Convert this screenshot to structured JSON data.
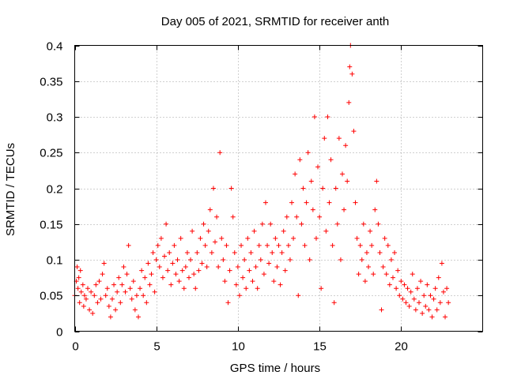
{
  "chart_data": {
    "type": "scatter",
    "title": "Day 005 of 2021, SRMTID for receiver anth",
    "xlabel": "GPS time / hours",
    "ylabel": "SRMTID / TECUs",
    "xlim": [
      0,
      25
    ],
    "ylim": [
      0,
      0.4
    ],
    "xticks": [
      0,
      5,
      10,
      15,
      20
    ],
    "xtick_labels": [
      "0",
      "5",
      "10",
      "15",
      "20"
    ],
    "yticks": [
      0,
      0.05,
      0.1,
      0.15,
      0.2,
      0.25,
      0.3,
      0.35,
      0.4
    ],
    "ytick_labels": [
      "0",
      "0.05",
      "0.1",
      "0.15",
      "0.2",
      "0.25",
      "0.3",
      "0.35",
      "0.4"
    ],
    "grid": true,
    "marker": "plus",
    "color": "#ff0000",
    "series": [
      {
        "name": "SRMTID",
        "points": [
          [
            0.0,
            0.05
          ],
          [
            0.1,
            0.07
          ],
          [
            0.15,
            0.09
          ],
          [
            0.2,
            0.06
          ],
          [
            0.25,
            0.075
          ],
          [
            0.3,
            0.04
          ],
          [
            0.35,
            0.085
          ],
          [
            0.4,
            0.055
          ],
          [
            0.5,
            0.065
          ],
          [
            0.55,
            0.035
          ],
          [
            0.6,
            0.05
          ],
          [
            0.7,
            0.045
          ],
          [
            0.8,
            0.06
          ],
          [
            0.9,
            0.03
          ],
          [
            1.0,
            0.055
          ],
          [
            1.1,
            0.025
          ],
          [
            1.2,
            0.05
          ],
          [
            1.3,
            0.065
          ],
          [
            1.4,
            0.04
          ],
          [
            1.5,
            0.07
          ],
          [
            1.6,
            0.045
          ],
          [
            1.7,
            0.08
          ],
          [
            1.8,
            0.095
          ],
          [
            1.9,
            0.05
          ],
          [
            2.0,
            0.06
          ],
          [
            2.1,
            0.035
          ],
          [
            2.2,
            0.02
          ],
          [
            2.3,
            0.045
          ],
          [
            2.4,
            0.065
          ],
          [
            2.5,
            0.03
          ],
          [
            2.6,
            0.055
          ],
          [
            2.7,
            0.075
          ],
          [
            2.8,
            0.04
          ],
          [
            2.9,
            0.065
          ],
          [
            3.0,
            0.09
          ],
          [
            3.1,
            0.055
          ],
          [
            3.2,
            0.08
          ],
          [
            3.3,
            0.12
          ],
          [
            3.4,
            0.06
          ],
          [
            3.5,
            0.045
          ],
          [
            3.6,
            0.07
          ],
          [
            3.7,
            0.03
          ],
          [
            3.8,
            0.05
          ],
          [
            3.9,
            0.02
          ],
          [
            4.0,
            0.06
          ],
          [
            4.1,
            0.085
          ],
          [
            4.2,
            0.05
          ],
          [
            4.3,
            0.075
          ],
          [
            4.4,
            0.04
          ],
          [
            4.5,
            0.095
          ],
          [
            4.6,
            0.065
          ],
          [
            4.7,
            0.08
          ],
          [
            4.8,
            0.11
          ],
          [
            4.9,
            0.055
          ],
          [
            5.0,
            0.1
          ],
          [
            5.1,
            0.12
          ],
          [
            5.2,
            0.09
          ],
          [
            5.3,
            0.13
          ],
          [
            5.4,
            0.075
          ],
          [
            5.5,
            0.105
          ],
          [
            5.6,
            0.15
          ],
          [
            5.7,
            0.085
          ],
          [
            5.8,
            0.11
          ],
          [
            5.9,
            0.065
          ],
          [
            6.0,
            0.095
          ],
          [
            6.1,
            0.12
          ],
          [
            6.2,
            0.08
          ],
          [
            6.3,
            0.1
          ],
          [
            6.4,
            0.07
          ],
          [
            6.5,
            0.13
          ],
          [
            6.6,
            0.085
          ],
          [
            6.7,
            0.06
          ],
          [
            6.8,
            0.09
          ],
          [
            6.9,
            0.11
          ],
          [
            7.0,
            0.075
          ],
          [
            7.1,
            0.1
          ],
          [
            7.2,
            0.14
          ],
          [
            7.3,
            0.08
          ],
          [
            7.4,
            0.06
          ],
          [
            7.5,
            0.11
          ],
          [
            7.6,
            0.085
          ],
          [
            7.7,
            0.13
          ],
          [
            7.8,
            0.095
          ],
          [
            7.9,
            0.15
          ],
          [
            8.0,
            0.12
          ],
          [
            8.1,
            0.09
          ],
          [
            8.2,
            0.14
          ],
          [
            8.3,
            0.17
          ],
          [
            8.4,
            0.11
          ],
          [
            8.5,
            0.2
          ],
          [
            8.6,
            0.125
          ],
          [
            8.7,
            0.16
          ],
          [
            8.8,
            0.09
          ],
          [
            8.9,
            0.25
          ],
          [
            9.0,
            0.13
          ],
          [
            9.1,
            0.1
          ],
          [
            9.2,
            0.07
          ],
          [
            9.3,
            0.12
          ],
          [
            9.4,
            0.04
          ],
          [
            9.5,
            0.085
          ],
          [
            9.6,
            0.2
          ],
          [
            9.7,
            0.16
          ],
          [
            9.8,
            0.11
          ],
          [
            9.9,
            0.065
          ],
          [
            10.0,
            0.09
          ],
          [
            10.1,
            0.05
          ],
          [
            10.2,
            0.12
          ],
          [
            10.3,
            0.075
          ],
          [
            10.4,
            0.1
          ],
          [
            10.5,
            0.06
          ],
          [
            10.6,
            0.13
          ],
          [
            10.7,
            0.085
          ],
          [
            10.8,
            0.11
          ],
          [
            10.9,
            0.07
          ],
          [
            11.0,
            0.14
          ],
          [
            11.1,
            0.09
          ],
          [
            11.2,
            0.06
          ],
          [
            11.3,
            0.12
          ],
          [
            11.4,
            0.1
          ],
          [
            11.5,
            0.15
          ],
          [
            11.6,
            0.08
          ],
          [
            11.7,
            0.18
          ],
          [
            11.8,
            0.12
          ],
          [
            11.9,
            0.095
          ],
          [
            12.0,
            0.15
          ],
          [
            12.1,
            0.11
          ],
          [
            12.2,
            0.07
          ],
          [
            12.3,
            0.13
          ],
          [
            12.4,
            0.09
          ],
          [
            12.5,
            0.12
          ],
          [
            12.6,
            0.065
          ],
          [
            12.7,
            0.11
          ],
          [
            12.8,
            0.14
          ],
          [
            12.9,
            0.085
          ],
          [
            13.0,
            0.16
          ],
          [
            13.1,
            0.12
          ],
          [
            13.2,
            0.1
          ],
          [
            13.3,
            0.18
          ],
          [
            13.4,
            0.13
          ],
          [
            13.5,
            0.22
          ],
          [
            13.6,
            0.16
          ],
          [
            13.7,
            0.05
          ],
          [
            13.8,
            0.24
          ],
          [
            13.9,
            0.15
          ],
          [
            14.0,
            0.2
          ],
          [
            14.1,
            0.12
          ],
          [
            14.2,
            0.18
          ],
          [
            14.3,
            0.25
          ],
          [
            14.4,
            0.1
          ],
          [
            14.5,
            0.21
          ],
          [
            14.6,
            0.17
          ],
          [
            14.7,
            0.3
          ],
          [
            14.8,
            0.13
          ],
          [
            14.9,
            0.23
          ],
          [
            15.0,
            0.16
          ],
          [
            15.1,
            0.06
          ],
          [
            15.2,
            0.2
          ],
          [
            15.3,
            0.27
          ],
          [
            15.4,
            0.14
          ],
          [
            15.5,
            0.3
          ],
          [
            15.6,
            0.18
          ],
          [
            15.7,
            0.24
          ],
          [
            15.8,
            0.12
          ],
          [
            15.9,
            0.04
          ],
          [
            16.0,
            0.2
          ],
          [
            16.1,
            0.15
          ],
          [
            16.2,
            0.27
          ],
          [
            16.3,
            0.1
          ],
          [
            16.4,
            0.22
          ],
          [
            16.5,
            0.17
          ],
          [
            16.6,
            0.26
          ],
          [
            16.7,
            0.21
          ],
          [
            16.8,
            0.32
          ],
          [
            16.85,
            0.37
          ],
          [
            16.9,
            0.4
          ],
          [
            17.0,
            0.36
          ],
          [
            17.1,
            0.28
          ],
          [
            17.2,
            0.18
          ],
          [
            17.3,
            0.13
          ],
          [
            17.4,
            0.08
          ],
          [
            17.5,
            0.12
          ],
          [
            17.6,
            0.1
          ],
          [
            17.7,
            0.15
          ],
          [
            17.8,
            0.07
          ],
          [
            17.9,
            0.11
          ],
          [
            18.0,
            0.09
          ],
          [
            18.1,
            0.14
          ],
          [
            18.2,
            0.12
          ],
          [
            18.3,
            0.08
          ],
          [
            18.4,
            0.17
          ],
          [
            18.5,
            0.21
          ],
          [
            18.6,
            0.15
          ],
          [
            18.7,
            0.11
          ],
          [
            18.8,
            0.03
          ],
          [
            18.9,
            0.09
          ],
          [
            19.0,
            0.13
          ],
          [
            19.1,
            0.08
          ],
          [
            19.2,
            0.12
          ],
          [
            19.3,
            0.065
          ],
          [
            19.4,
            0.1
          ],
          [
            19.5,
            0.075
          ],
          [
            19.6,
            0.11
          ],
          [
            19.7,
            0.06
          ],
          [
            19.8,
            0.085
          ],
          [
            19.9,
            0.05
          ],
          [
            20.0,
            0.07
          ],
          [
            20.1,
            0.045
          ],
          [
            20.2,
            0.065
          ],
          [
            20.3,
            0.04
          ],
          [
            20.4,
            0.06
          ],
          [
            20.5,
            0.035
          ],
          [
            20.6,
            0.055
          ],
          [
            20.7,
            0.08
          ],
          [
            20.8,
            0.045
          ],
          [
            20.9,
            0.03
          ],
          [
            21.0,
            0.06
          ],
          [
            21.1,
            0.04
          ],
          [
            21.2,
            0.07
          ],
          [
            21.3,
            0.025
          ],
          [
            21.4,
            0.05
          ],
          [
            21.5,
            0.035
          ],
          [
            21.6,
            0.065
          ],
          [
            21.7,
            0.03
          ],
          [
            21.8,
            0.05
          ],
          [
            21.9,
            0.02
          ],
          [
            22.0,
            0.045
          ],
          [
            22.1,
            0.06
          ],
          [
            22.2,
            0.03
          ],
          [
            22.3,
            0.075
          ],
          [
            22.4,
            0.04
          ],
          [
            22.5,
            0.095
          ],
          [
            22.6,
            0.055
          ],
          [
            22.7,
            0.02
          ],
          [
            22.8,
            0.06
          ],
          [
            22.9,
            0.04
          ]
        ]
      }
    ]
  }
}
